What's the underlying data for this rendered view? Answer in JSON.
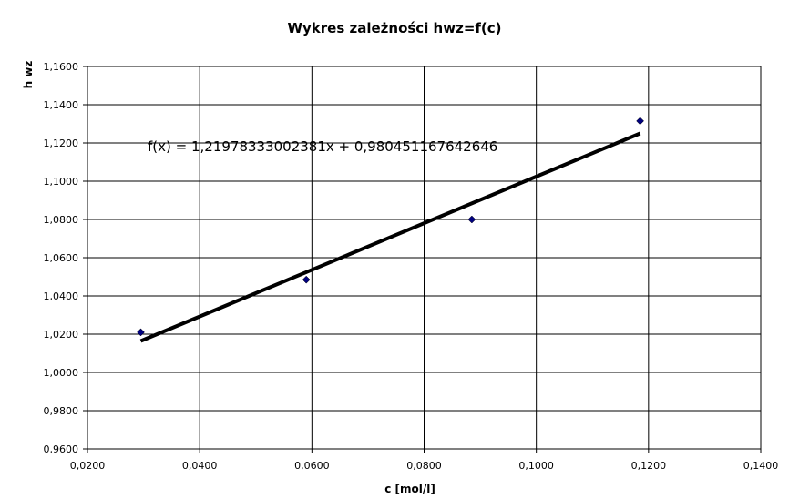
{
  "chart_data": {
    "type": "scatter",
    "title": "Wykres zależności hwz=f(c)",
    "xlabel": "c [mol/l]",
    "ylabel": "h wz",
    "xlim": [
      0.02,
      0.14
    ],
    "ylim": [
      0.96,
      1.16
    ],
    "x_ticks": [
      "0,0200",
      "0,0400",
      "0,0600",
      "0,0800",
      "0,1000",
      "0,1200",
      "0,1400"
    ],
    "y_ticks": [
      "0,9600",
      "0,9800",
      "1,0000",
      "1,0200",
      "1,0400",
      "1,0600",
      "1,0800",
      "1,1000",
      "1,1200",
      "1,1400",
      "1,1600"
    ],
    "grid": true,
    "series": [
      {
        "x": [
          0.0295,
          0.059,
          0.0885,
          0.1185
        ],
        "y": [
          1.021,
          1.0485,
          1.08,
          1.1315
        ],
        "marker": "diamond",
        "color": "#000080"
      }
    ],
    "trendline": {
      "x_range": [
        0.0295,
        0.1185
      ],
      "slope": 1.21978333002381,
      "intercept": 0.980451167642646,
      "color": "#000000",
      "equation": "f(x) = 1,21978333002381x + 0,980451167642646"
    }
  }
}
